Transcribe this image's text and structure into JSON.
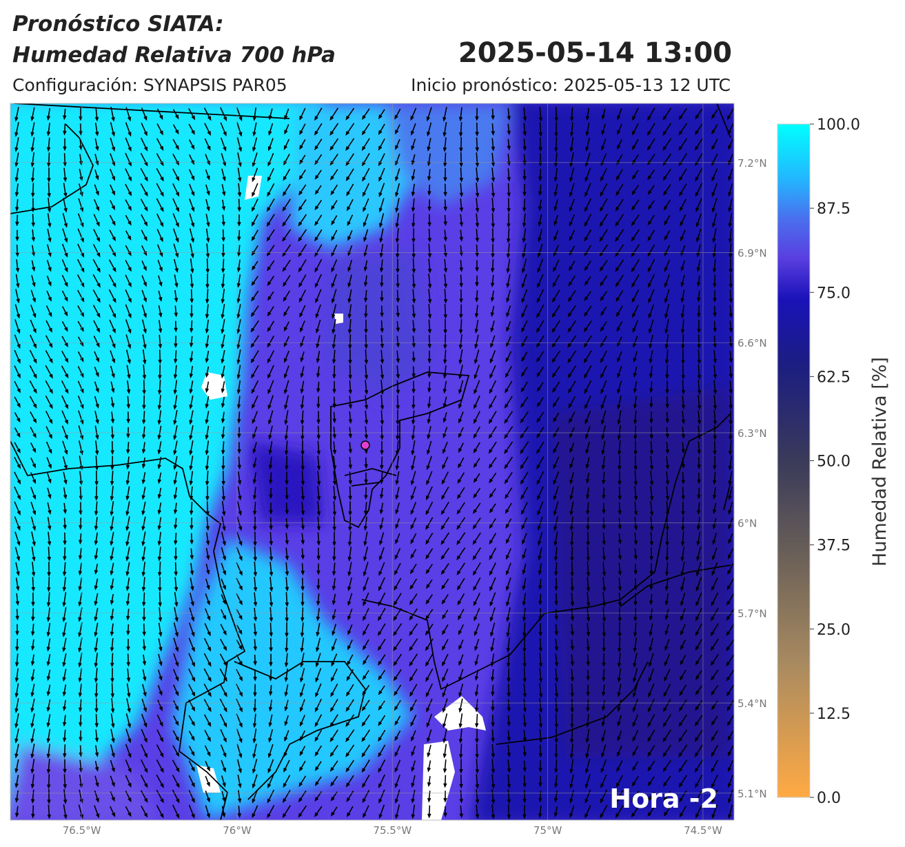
{
  "header": {
    "title_line1": "Pronóstico SIATA:",
    "title_line2": "Humedad Relativa 700 hPa",
    "valid_time": "2025-05-14 13:00",
    "config": "Configuración: SYNAPSIS PAR05",
    "init": "Inicio pronóstico: 2025-05-13 12 UTC"
  },
  "map": {
    "lonlim": [
      -76.73,
      -74.4
    ],
    "latlim": [
      5.01,
      7.397
    ],
    "lon_ticks": [
      {
        "value": -76.5,
        "label": "76.5°W"
      },
      {
        "value": -76,
        "label": "76°W"
      },
      {
        "value": -75.5,
        "label": "75.5°W"
      },
      {
        "value": -75,
        "label": "75°W"
      },
      {
        "value": -74.5,
        "label": "74.5°W"
      }
    ],
    "lat_ticks": [
      {
        "value": 7.2,
        "label": "7.2°N"
      },
      {
        "value": 6.9,
        "label": "6.9°N"
      },
      {
        "value": 6.6,
        "label": "6.6°N"
      },
      {
        "value": 6.3,
        "label": "6.3°N"
      },
      {
        "value": 6,
        "label": "6°N"
      },
      {
        "value": 5.7,
        "label": "5.7°N"
      },
      {
        "value": 5.4,
        "label": "5.4°N"
      },
      {
        "value": 5.1,
        "label": "5.1°N"
      }
    ],
    "hour_label": "Hora -2"
  },
  "colorbar": {
    "label": "Humedad Relativa [%]",
    "range": [
      0,
      100
    ],
    "ticks": [
      {
        "value": 100,
        "label": "100.0"
      },
      {
        "value": 87.5,
        "label": "87.5"
      },
      {
        "value": 75,
        "label": "75.0"
      },
      {
        "value": 62.5,
        "label": "62.5"
      },
      {
        "value": 50,
        "label": "50.0"
      },
      {
        "value": 37.5,
        "label": "37.5"
      },
      {
        "value": 25,
        "label": "25.0"
      },
      {
        "value": 12.5,
        "label": "12.5"
      },
      {
        "value": 0,
        "label": "0.0"
      }
    ]
  }
}
